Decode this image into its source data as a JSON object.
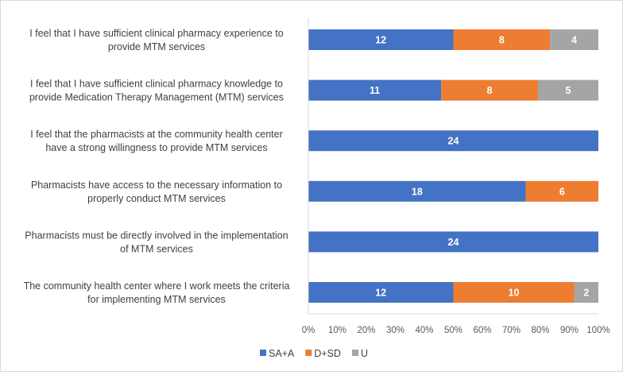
{
  "chart_data": {
    "type": "bar",
    "orientation": "horizontal",
    "stacked": "percent",
    "title": "",
    "xlabel": "",
    "ylabel": "",
    "xlim": [
      0,
      100
    ],
    "x_tick_step": 10,
    "x_tick_suffix": "%",
    "grid": false,
    "legend_position": "bottom",
    "categories": [
      [
        "I feel that I have sufficient clinical pharmacy experience to",
        "provide MTM services"
      ],
      [
        "I feel that I have sufficient clinical pharmacy knowledge to",
        "provide Medication Therapy Management (MTM) services"
      ],
      [
        "I feel that the pharmacists at the community health center",
        "have a strong willingness to provide MTM services"
      ],
      [
        "Pharmacists have access to the necessary information to",
        "properly conduct MTM services"
      ],
      [
        "Pharmacists must be directly involved in the implementation",
        "of MTM services"
      ],
      [
        "The community health center where I work meets the criteria",
        "for implementing MTM services"
      ]
    ],
    "series": [
      {
        "name": "SA+A",
        "color": "#4472C4",
        "label_color": "#ffffff",
        "values": [
          12,
          11,
          24,
          18,
          24,
          12
        ]
      },
      {
        "name": "D+SD",
        "color": "#ED7D31",
        "label_color": "#ffffff",
        "values": [
          8,
          8,
          0,
          6,
          0,
          10
        ]
      },
      {
        "name": "U",
        "color": "#A5A5A5",
        "label_color": "#ffffff",
        "values": [
          4,
          5,
          0,
          0,
          0,
          2
        ]
      }
    ]
  }
}
